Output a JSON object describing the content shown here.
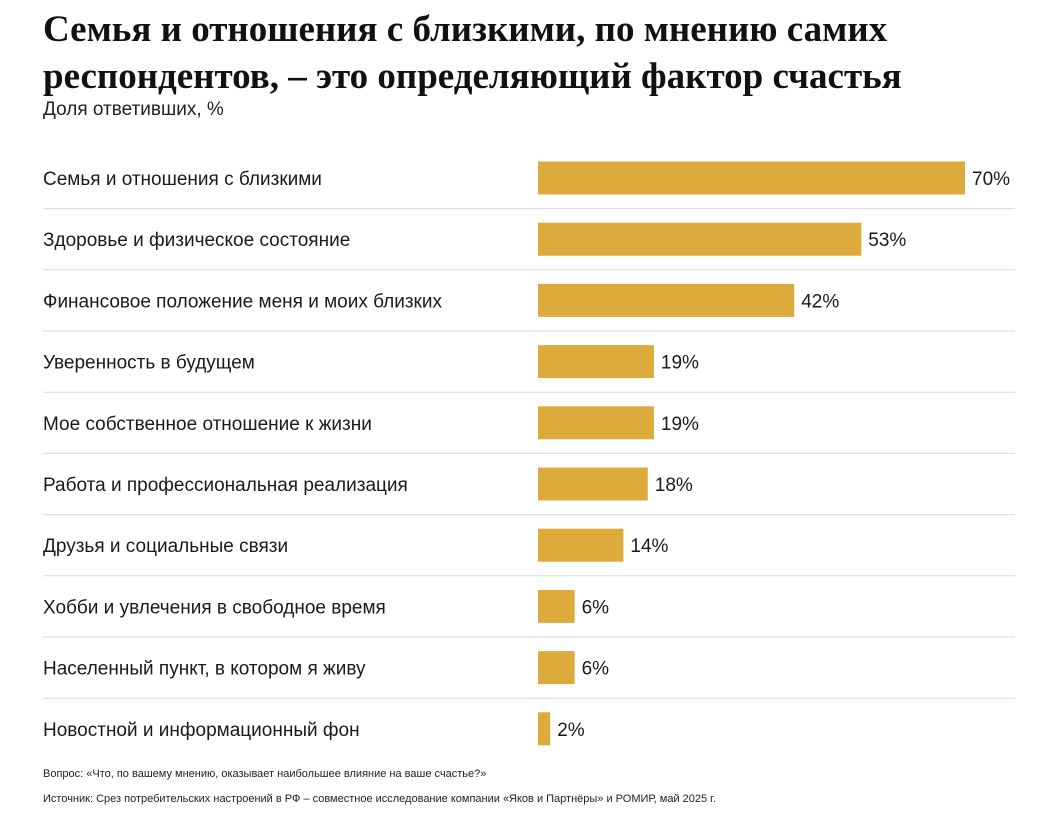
{
  "title": "Семья и отношения с близкими, по мнению самих респондентов, – это определяющий фактор счастья",
  "subtitle": "Доля ответивших, %",
  "colors": {
    "bar": "#DDAA3C",
    "divider": "#D9D9D9",
    "text": "#1A1A1A"
  },
  "chart_data": {
    "type": "bar",
    "orientation": "horizontal",
    "title": "Семья и отношения с близкими, по мнению самих респондентов, – это определяющий фактор счастья",
    "subtitle": "Доля ответивших, %",
    "xlim": [
      0,
      70
    ],
    "grid": false,
    "categories": [
      "Семья и отношения с близкими",
      "Здоровье и физическое состояние",
      "Финансовое положение меня и моих близких",
      "Уверенность в будущем",
      "Мое собственное отношение к жизни",
      "Работа и профессиональная реализация",
      "Друзья и социальные связи",
      "Хобби и увлечения в свободное время",
      "Населенный пункт, в котором я живу",
      "Новостной и информационный фон"
    ],
    "values": [
      70,
      53,
      42,
      19,
      19,
      18,
      14,
      6,
      6,
      2
    ],
    "value_labels": [
      "70%",
      "53%",
      "42%",
      "19%",
      "19%",
      "18%",
      "14%",
      "6%",
      "6%",
      "2%"
    ]
  },
  "footnotes": {
    "question": "Вопрос: «Что, по вашему мнению, оказывает наибольшее влияние на ваше счастье?»",
    "source": "Источник: Срез потребительских настроений в РФ – совместное исследование компании «Яков и Партнёры» и РОМИР, май 2025 г."
  }
}
